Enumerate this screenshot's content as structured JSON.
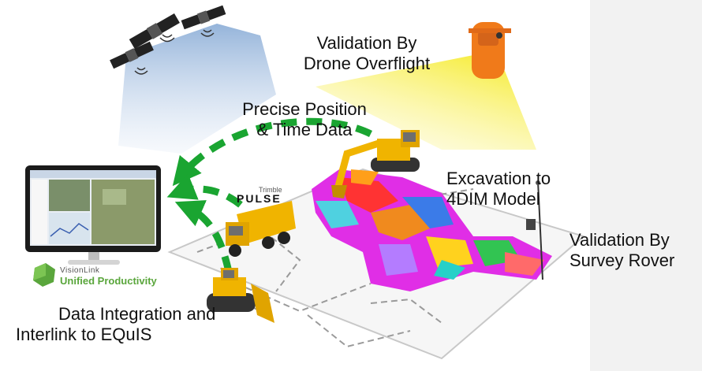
{
  "labels": {
    "drone_validation_line1": "Validation By",
    "drone_validation_line2": "Drone Overflight",
    "position_line1": "Precise Position",
    "position_line2": "& Time Data",
    "excavation_line1": "Excavation to",
    "excavation_line2": "4DIM Model",
    "rover_line1": "Validation By",
    "rover_line2": "Survey Rover",
    "integration_line1": "Data Integration and",
    "integration_line2": "Interlink to EQuIS"
  },
  "logos": {
    "visionlink_brand": "VisionLink",
    "visionlink_product": "Unified Productivity",
    "pulse_maker": "Trimble",
    "pulse_name": "PULSE"
  },
  "colors": {
    "arrow": "#1aa531",
    "satellite_beam": "#9ab8dc",
    "drone_beam": "#f5ec3a",
    "drone_body": "#f07a1a",
    "machine_yellow": "#f0b400",
    "side_panel": "#f2f2f2",
    "visionlink_green": "#5aa63c"
  },
  "icons": [
    "satellite-icon",
    "drone-icon",
    "monitor-icon",
    "excavator-icon",
    "dump-truck-icon",
    "bulldozer-icon",
    "survey-rover-icon"
  ]
}
